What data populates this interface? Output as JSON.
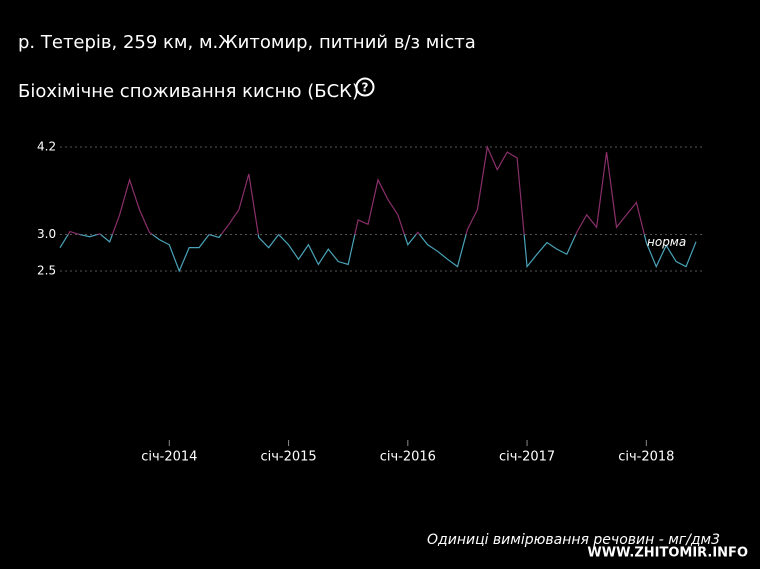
{
  "header": {
    "location": "р. Тетерів, 259 км, м.Житомир, питний в/з міста"
  },
  "chart_data": {
    "type": "line",
    "title": "Біохімічне споживання кисню (БСК)",
    "help_icon": "?",
    "x": [
      "2013-02",
      "2013-03",
      "2013-04",
      "2013-05",
      "2013-06",
      "2013-07",
      "2013-08",
      "2013-09",
      "2013-10",
      "2013-11",
      "2013-12",
      "2014-01",
      "2014-02",
      "2014-03",
      "2014-04",
      "2014-05",
      "2014-06",
      "2014-07",
      "2014-08",
      "2014-09",
      "2014-10",
      "2014-11",
      "2014-12",
      "2015-01",
      "2015-02",
      "2015-03",
      "2015-04",
      "2015-05",
      "2015-06",
      "2015-07",
      "2015-08",
      "2015-09",
      "2015-10",
      "2015-11",
      "2015-12",
      "2016-01",
      "2016-02",
      "2016-03",
      "2016-04",
      "2016-05",
      "2016-06",
      "2016-07",
      "2016-08",
      "2016-09",
      "2016-10",
      "2016-11",
      "2016-12",
      "2017-01",
      "2017-02",
      "2017-03",
      "2017-04",
      "2017-05",
      "2017-06",
      "2017-07",
      "2017-08",
      "2017-09",
      "2017-10",
      "2017-11",
      "2017-12",
      "2018-01",
      "2018-02",
      "2018-03",
      "2018-04",
      "2018-05",
      "2018-06"
    ],
    "series": [
      {
        "color": "#4aa3b8",
        "color_above": "#8a2f6a",
        "values": [
          2.82,
          3.04,
          3.0,
          2.97,
          3.01,
          2.9,
          3.27,
          3.75,
          3.34,
          3.03,
          2.93,
          2.86,
          2.5,
          2.82,
          2.82,
          3.0,
          2.96,
          3.14,
          3.34,
          3.83,
          2.96,
          2.82,
          3.0,
          2.86,
          2.66,
          2.86,
          2.59,
          2.8,
          2.63,
          2.59,
          3.2,
          3.14,
          3.75,
          3.48,
          3.27,
          2.86,
          3.03,
          2.86,
          2.77,
          2.66,
          2.56,
          3.07,
          3.34,
          4.2,
          3.89,
          4.13,
          4.05,
          2.56,
          2.73,
          2.89,
          2.8,
          2.73,
          3.03,
          3.27,
          3.1,
          4.13,
          3.1,
          3.27,
          3.44,
          2.89,
          2.56,
          2.85,
          2.63,
          2.56,
          2.9
        ]
      }
    ],
    "threshold": 3,
    "threshold_label": "норма",
    "xlim": [
      "2013-02",
      "2018-06"
    ],
    "xticks": [
      {
        "value": "2014-01",
        "label": "січ-2014"
      },
      {
        "value": "2015-01",
        "label": "січ-2015"
      },
      {
        "value": "2016-01",
        "label": "січ-2016"
      },
      {
        "value": "2017-01",
        "label": "січ-2017"
      },
      {
        "value": "2018-01",
        "label": "січ-2018"
      }
    ],
    "ylim": [
      2.5,
      4.2
    ],
    "yticks": [
      2.5,
      {
        "value": 3,
        "label": "3.0"
      },
      4.2
    ],
    "grid": true,
    "note": "Одиниці вимірювання речовин - мг/дм3"
  },
  "watermark": "WWW.ZHITOMIR.INFO"
}
